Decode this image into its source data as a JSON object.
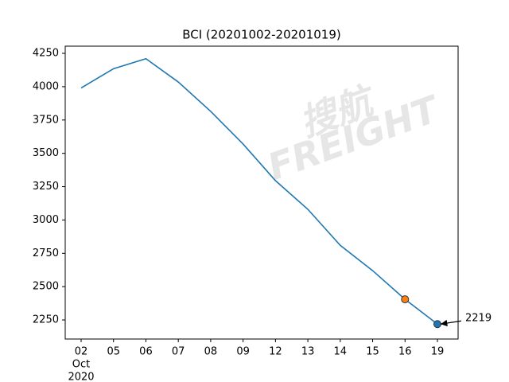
{
  "chart_data": {
    "type": "line",
    "title": "BCI (20201002-20201019)",
    "categories": [
      "02",
      "05",
      "06",
      "07",
      "08",
      "09",
      "12",
      "13",
      "14",
      "15",
      "16",
      "19"
    ],
    "x_month": "Oct",
    "x_year": "2020",
    "series": [
      {
        "name": "BCI",
        "color": "#1f77b4",
        "values": [
          3990,
          4135,
          4210,
          4035,
          3815,
          3570,
          3295,
          3080,
          2810,
          2620,
          2405,
          2219
        ],
        "value_labels": [
          null,
          null,
          null,
          null,
          null,
          null,
          null,
          null,
          null,
          null,
          null,
          "2219"
        ]
      }
    ],
    "highlight_colors": {
      "16": "#ff7f0e",
      "19": "#1f77b4"
    },
    "ylim": [
      2107,
      4304
    ],
    "yticks": [
      2250,
      2500,
      2750,
      3000,
      3250,
      3500,
      3750,
      4000,
      4250
    ],
    "watermark": [
      "搜航",
      "FREIGHT"
    ]
  }
}
